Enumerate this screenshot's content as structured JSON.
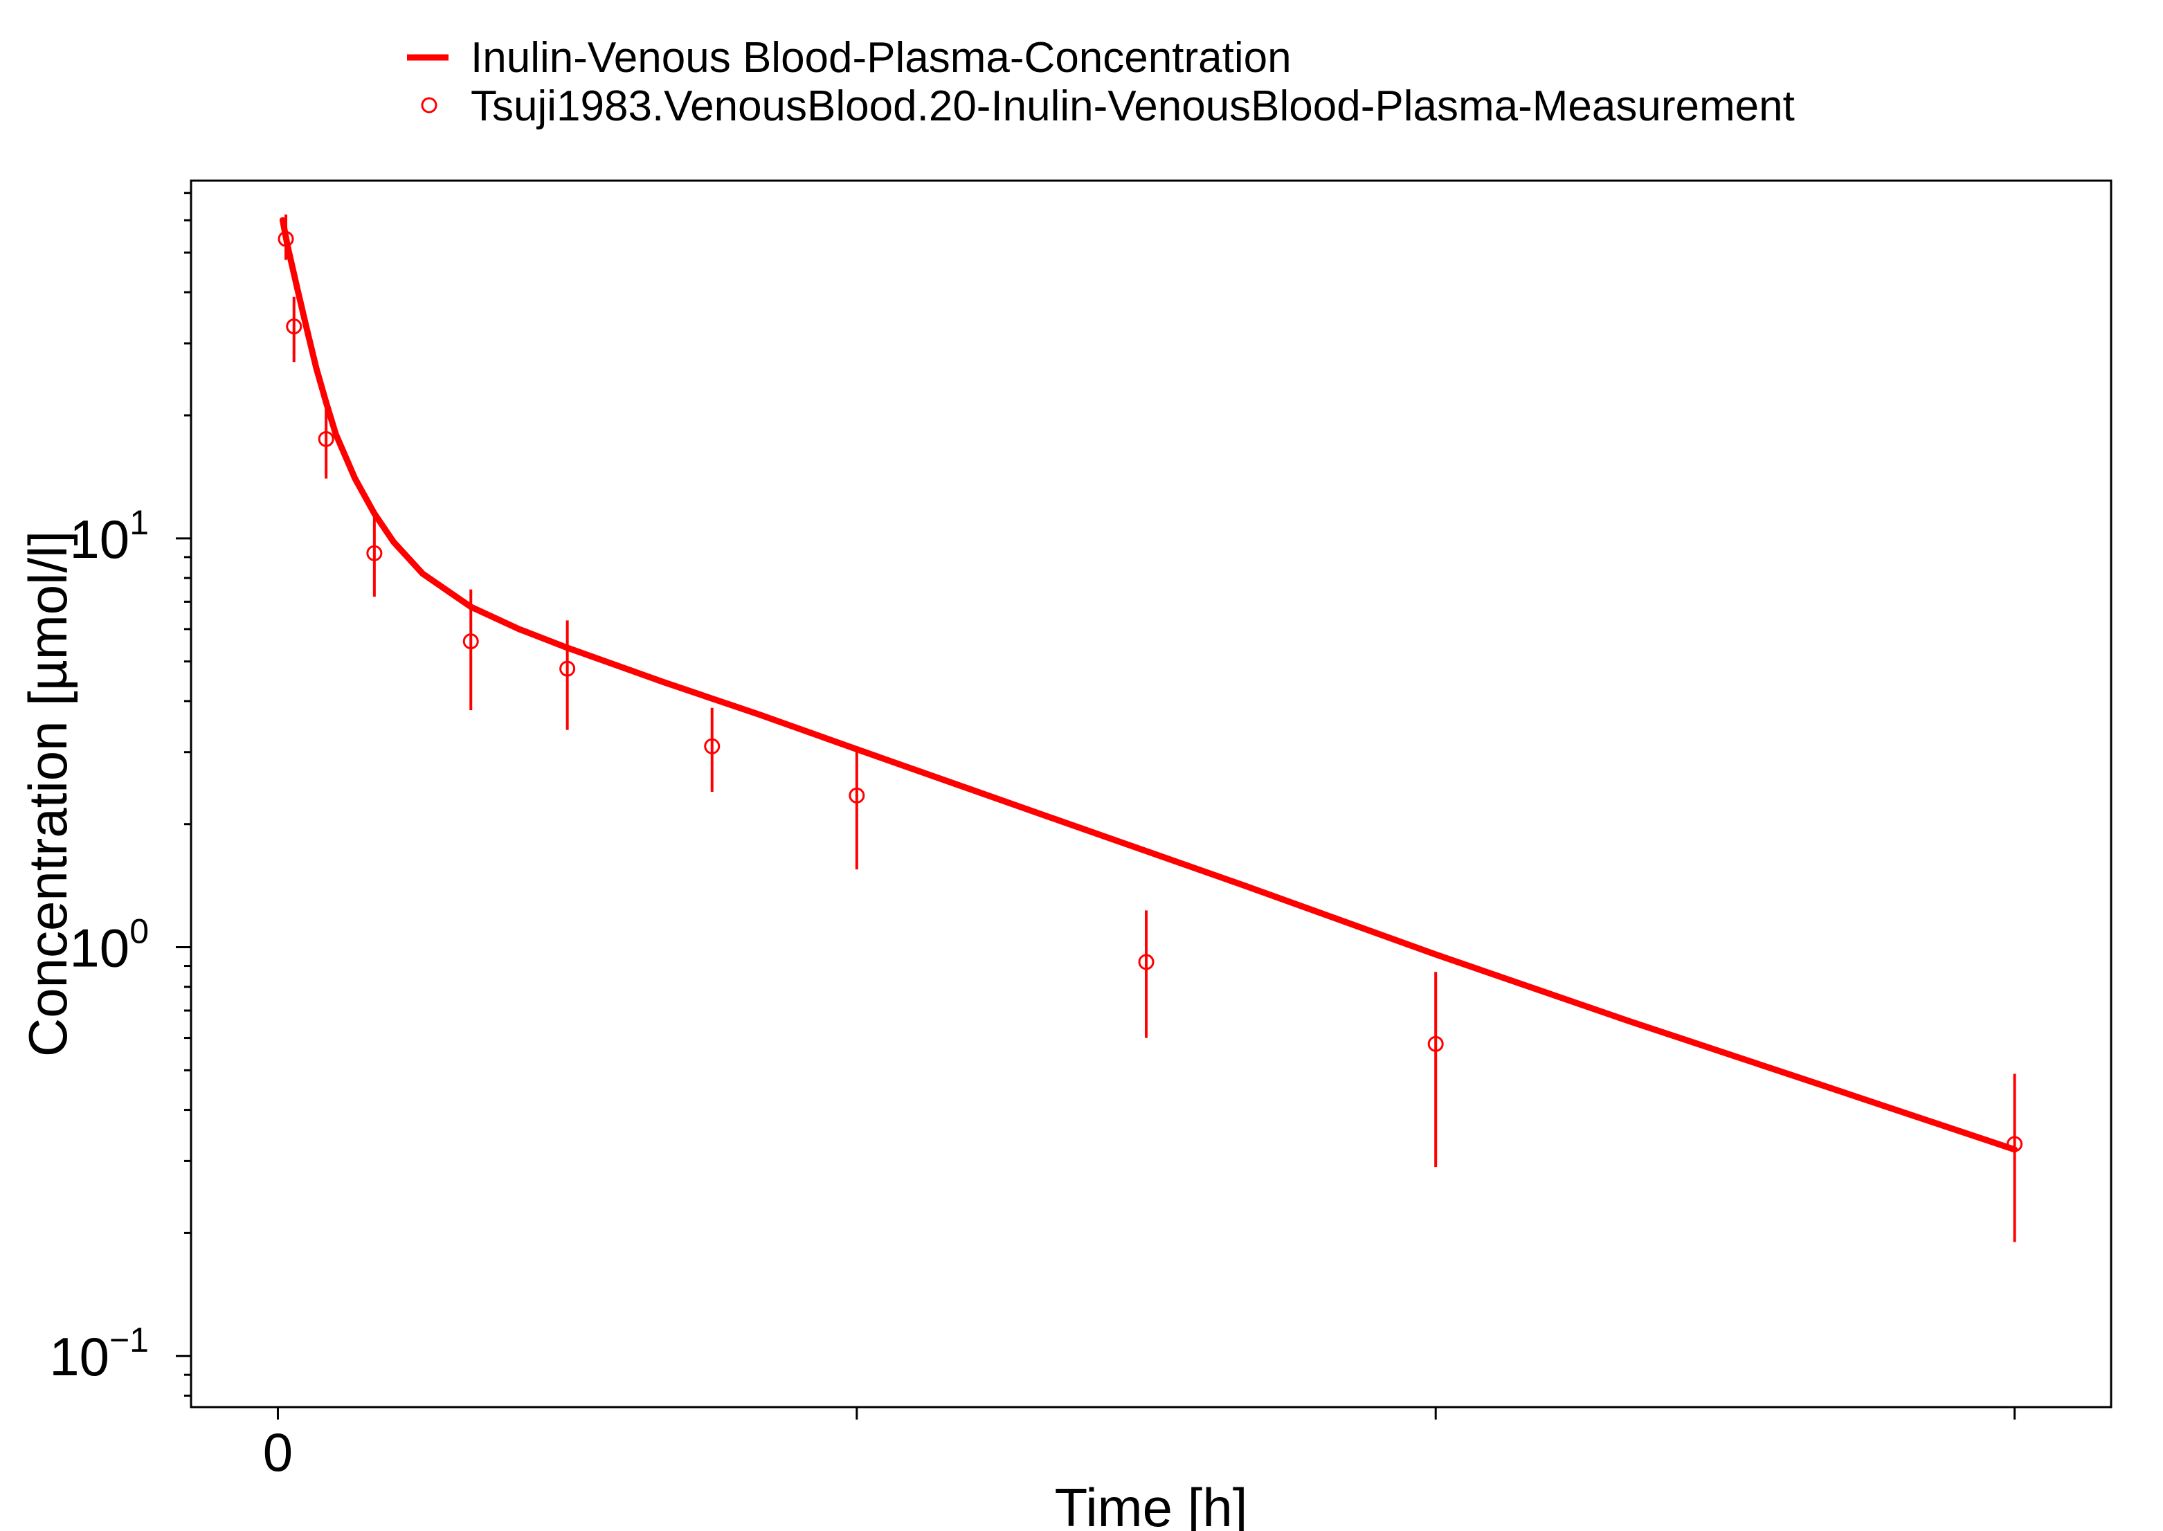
{
  "chart_data": {
    "type": "scatter",
    "title": "",
    "xlabel": "Time [h]",
    "ylabel": "Concentration [µmol/l]",
    "x_tick_labels": [
      "0",
      "",
      "",
      ""
    ],
    "x_ticks": [
      0,
      6,
      12,
      18
    ],
    "xlim": [
      -0.9,
      19.0
    ],
    "y_scale": "log",
    "ylim": [
      0.075,
      75
    ],
    "y_ticks": [
      {
        "value": 0.1,
        "base": "10",
        "exp": "−1"
      },
      {
        "value": 1,
        "base": "10",
        "exp": "0"
      },
      {
        "value": 10,
        "base": "10",
        "exp": "1"
      }
    ],
    "color": "#ff0000",
    "legend_position": "top",
    "series": [
      {
        "name": "Inulin-Venous Blood-Plasma-Concentration",
        "kind": "line",
        "x": [
          0.05,
          0.1,
          0.2,
          0.3,
          0.4,
          0.5,
          0.6,
          0.8,
          1.0,
          1.2,
          1.5,
          2.0,
          2.5,
          3.0,
          4.0,
          5.0,
          6.0,
          8.0,
          10.0,
          12.0,
          14.0,
          16.0,
          18.0
        ],
        "y": [
          60.0,
          52.0,
          41.0,
          32.5,
          26.0,
          21.5,
          18.0,
          14.0,
          11.5,
          9.8,
          8.2,
          6.8,
          6.0,
          5.4,
          4.45,
          3.7,
          3.05,
          2.08,
          1.42,
          0.96,
          0.66,
          0.46,
          0.32
        ]
      },
      {
        "name": "Tsuji1983.VenousBlood.20-Inulin-VenousBlood-Plasma-Measurement",
        "kind": "points",
        "x": [
          0.083,
          0.167,
          0.5,
          1.0,
          2.0,
          3.0,
          4.5,
          6.0,
          9.0,
          12.0,
          18.0
        ],
        "y": [
          54.0,
          33.0,
          17.5,
          9.2,
          5.6,
          4.8,
          3.1,
          2.35,
          0.92,
          0.58,
          0.33
        ],
        "yerr_low": [
          48.0,
          27.0,
          14.0,
          7.2,
          3.8,
          3.4,
          2.4,
          1.55,
          0.6,
          0.29,
          0.19
        ],
        "yerr_high": [
          62.0,
          39.0,
          21.0,
          11.3,
          7.5,
          6.3,
          3.85,
          3.1,
          1.23,
          0.87,
          0.49
        ]
      }
    ]
  }
}
